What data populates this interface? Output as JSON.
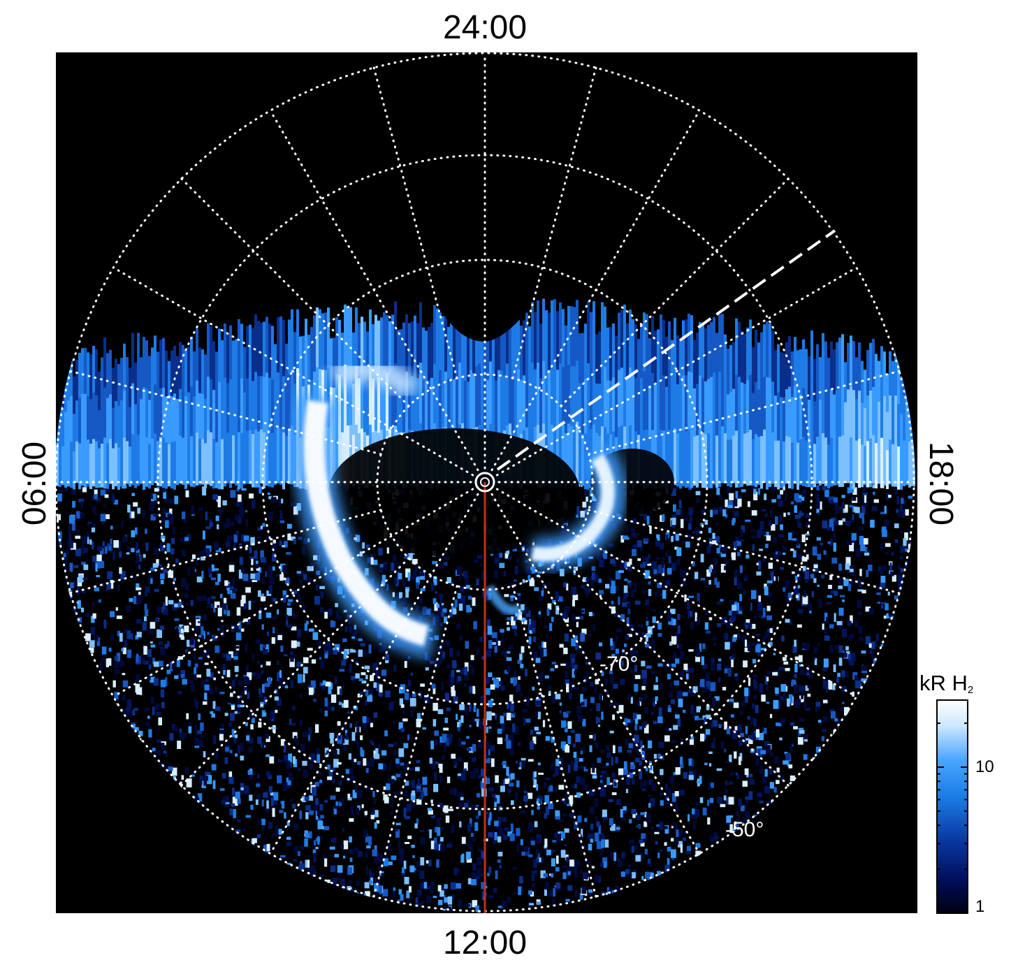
{
  "local_time_labels": {
    "top": "24:00",
    "bottom": "12:00",
    "left": "06:00",
    "right": "18:00"
  },
  "latitude_labels": {
    "inner": "-70°",
    "outer": "-50°"
  },
  "colorbar": {
    "title": "kR H",
    "title_subscript": "2",
    "tick_high": "10",
    "tick_low": "1",
    "scale": "log",
    "colors": [
      "#000010",
      "#000d59",
      "#0a3aa3",
      "#1b7ee6",
      "#4aa6ff",
      "#cde8ff",
      "#ffffff"
    ]
  },
  "image": {
    "background_color": "#000000",
    "grid_color": "#ffffff",
    "meridian_color": "#c0301a",
    "dashed_line_color": "#ffffff"
  }
}
